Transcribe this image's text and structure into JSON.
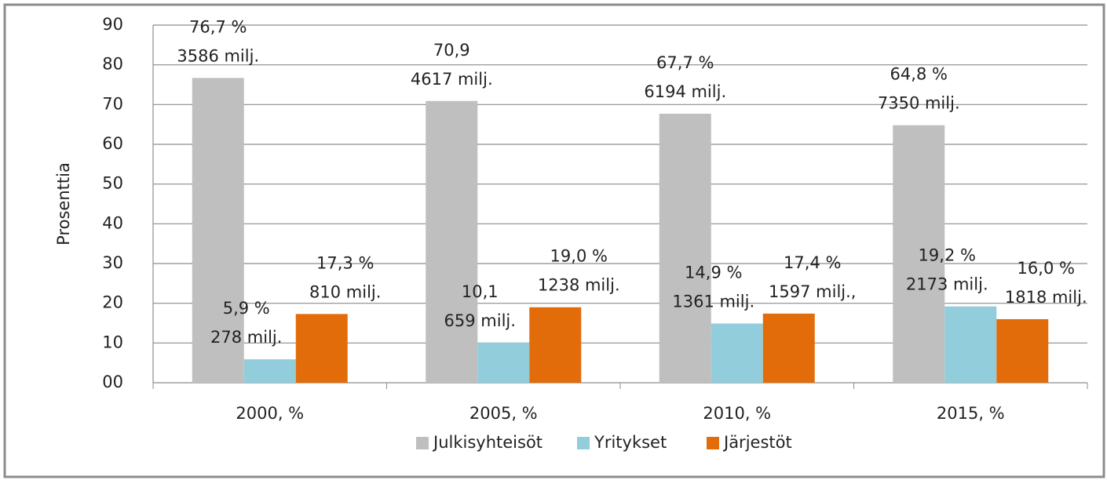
{
  "chart_data": {
    "type": "bar",
    "y_label": "Prosenttia",
    "categories": [
      "2000, %",
      "2005, %",
      "2010, %",
      "2015, %"
    ],
    "ylim": [
      0,
      90
    ],
    "yticks": [
      {
        "value": 0,
        "label": "00"
      },
      10,
      20,
      30,
      40,
      50,
      60,
      70,
      80,
      90
    ],
    "grid": true,
    "legend": "bottom",
    "series": [
      {
        "name": "Julkisyhteisöt",
        "color": "#bfbfbf",
        "values": [
          76.7,
          70.9,
          67.7,
          64.8
        ],
        "value_labels": [
          "76,7 %",
          "70,9",
          "67,7 %",
          "64,8 %"
        ],
        "amount_labels": [
          "3586 milj.",
          "4617 milj.",
          "6194 milj.",
          "7350 milj."
        ]
      },
      {
        "name": "Yritykset",
        "color": "#92cddc",
        "values": [
          5.9,
          10.1,
          14.9,
          19.2
        ],
        "value_labels": [
          "5,9 %",
          "10,1",
          "14,9 %",
          "19,2 %"
        ],
        "amount_labels": [
          "278 milj.",
          "659 milj.",
          "1361 milj.",
          "2173 milj."
        ]
      },
      {
        "name": "Järjestöt",
        "color": "#e36c0a",
        "values": [
          17.3,
          19.0,
          17.4,
          16.0
        ],
        "value_labels": [
          "17,3 %",
          "19,0 %",
          "17,4 %",
          "16,0 %"
        ],
        "amount_labels": [
          "810 milj.",
          "1238 milj.",
          "1597 milj.,",
          "1818 milj."
        ]
      }
    ]
  }
}
